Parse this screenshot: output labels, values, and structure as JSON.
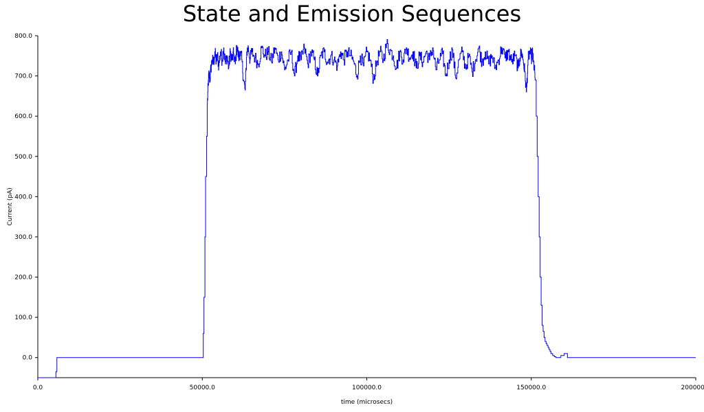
{
  "chart_data": {
    "type": "line",
    "title": "State and Emission Sequences",
    "xlabel": "time (microsecs)",
    "ylabel": "Current (pA)",
    "xlim": [
      0,
      200000
    ],
    "ylim": [
      -50,
      800
    ],
    "x_ticks": [
      0,
      50000,
      100000,
      150000,
      200000
    ],
    "x_tick_labels": [
      "0.0",
      "50000.0",
      "100000.0",
      "150000.0",
      "200000.0"
    ],
    "y_ticks": [
      0,
      100,
      200,
      300,
      400,
      500,
      600,
      700,
      800
    ],
    "y_tick_labels": [
      "0.0",
      "100.0",
      "200.0",
      "300.0",
      "400.0",
      "500.0",
      "600.0",
      "700.0",
      "800.0"
    ],
    "grid": false,
    "legend": "none",
    "line_color": "#0000ff",
    "series": [
      {
        "x": [
          0,
          5500,
          5500,
          5800,
          5800,
          50000,
          50300,
          50500,
          50800,
          51000,
          51300,
          51500,
          51800,
          52000,
          52300,
          52600,
          53000,
          53400,
          53800,
          54200,
          54600,
          55000,
          55500,
          56000,
          56500,
          57000,
          57500,
          58000,
          58500,
          59000,
          59500,
          60000,
          60500,
          61000,
          61500,
          62000,
          62500,
          63000,
          63500,
          64000,
          64500,
          65000,
          66000,
          67000,
          68000,
          69000,
          70000,
          71000,
          72000,
          73000,
          74000,
          75000,
          76000,
          77000,
          78000,
          79000,
          80000,
          81000,
          82000,
          83000,
          84000,
          85000,
          86000,
          87000,
          88000,
          89000,
          90000,
          91000,
          92000,
          93000,
          94000,
          95000,
          96000,
          97000,
          98000,
          99000,
          100000,
          101000,
          102000,
          103000,
          104000,
          105000,
          106000,
          107000,
          108000,
          109000,
          110000,
          111000,
          112000,
          113000,
          114000,
          115000,
          116000,
          117000,
          118000,
          119000,
          120000,
          121000,
          122000,
          123000,
          124000,
          125000,
          126000,
          127000,
          128000,
          129000,
          130000,
          131000,
          132000,
          133000,
          134000,
          135000,
          136000,
          137000,
          138000,
          139000,
          140000,
          141000,
          142000,
          143000,
          144000,
          145000,
          146000,
          146500,
          147000,
          147500,
          148000,
          148500,
          149000,
          149500,
          150000,
          150300,
          150600,
          150900,
          151200,
          151500,
          151800,
          152100,
          152400,
          152700,
          153000,
          153300,
          153600,
          153900,
          154200,
          154500,
          154800,
          155100,
          155400,
          155700,
          156000,
          156500,
          157000,
          157500,
          158000,
          159000,
          160000,
          161000,
          161000,
          200000
        ],
        "y": [
          -50,
          -50,
          -35,
          -35,
          0,
          0,
          60,
          150,
          300,
          450,
          550,
          630,
          680,
          705,
          690,
          720,
          740,
          730,
          760,
          735,
          750,
          725,
          760,
          740,
          770,
          730,
          750,
          720,
          760,
          740,
          755,
          730,
          775,
          745,
          760,
          740,
          690,
          665,
          760,
          770,
          740,
          760,
          745,
          730,
          770,
          750,
          760,
          735,
          770,
          740,
          760,
          715,
          740,
          760,
          700,
          750,
          740,
          770,
          730,
          760,
          740,
          700,
          750,
          760,
          735,
          750,
          740,
          725,
          760,
          740,
          760,
          750,
          735,
          700,
          750,
          725,
          760,
          740,
          690,
          735,
          760,
          740,
          780,
          765,
          750,
          720,
          760,
          740,
          770,
          745,
          760,
          720,
          750,
          735,
          760,
          740,
          770,
          715,
          740,
          755,
          700,
          740,
          765,
          695,
          740,
          760,
          720,
          750,
          710,
          740,
          770,
          735,
          760,
          730,
          750,
          720,
          740,
          770,
          745,
          760,
          735,
          750,
          720,
          745,
          760,
          740,
          710,
          660,
          740,
          760,
          745,
          760,
          735,
          720,
          690,
          600,
          500,
          400,
          300,
          200,
          130,
          80,
          65,
          50,
          40,
          35,
          30,
          25,
          20,
          15,
          10,
          5,
          2,
          0,
          0,
          5,
          10,
          8,
          0,
          0
        ],
        "noise_amplitude": 18
      }
    ]
  }
}
